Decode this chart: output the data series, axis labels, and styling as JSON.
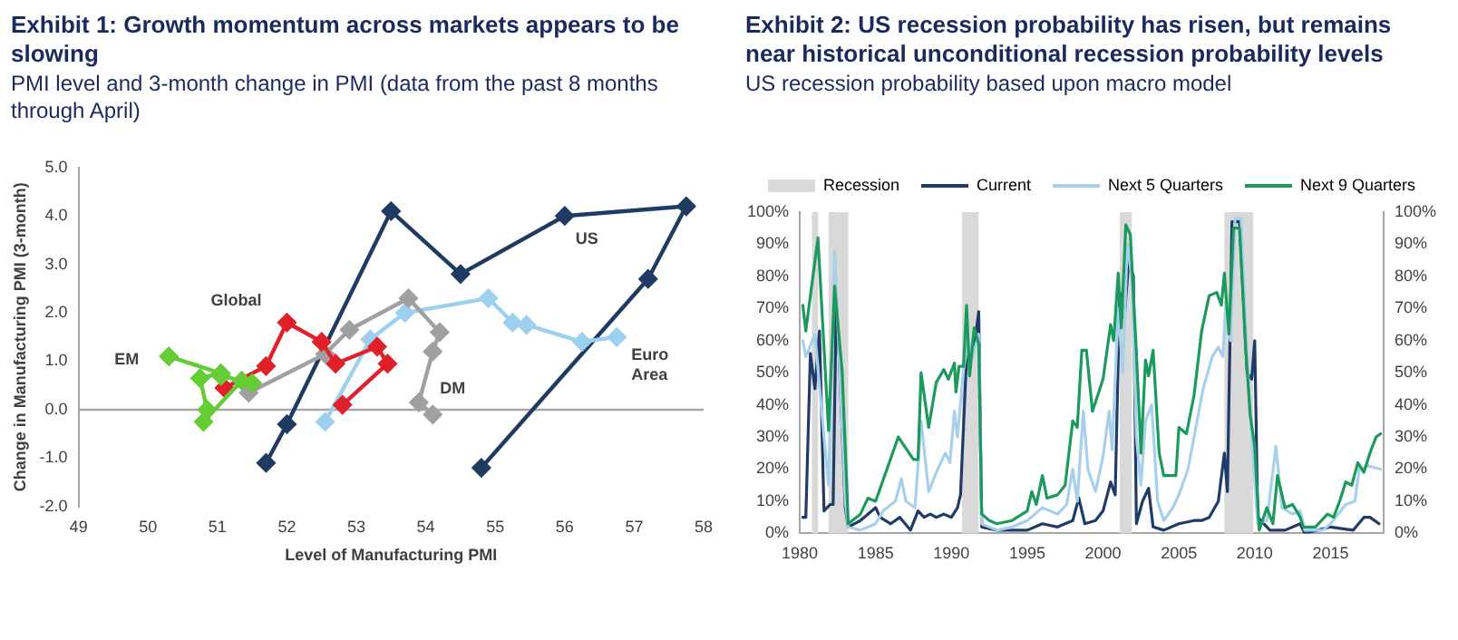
{
  "chart_data": [
    {
      "type": "line",
      "title": "Exhibit 1: Growth momentum across markets appears to be slowing",
      "subtitle": "PMI level and 3-month change in PMI (data from the past 8 months through April)",
      "xlabel": "Level of Manufacturing PMI",
      "ylabel": "Change in Manufacturing PMI (3-month)",
      "marker": "diamond",
      "legend": false,
      "xlim": [
        49,
        58
      ],
      "xticks": [
        49,
        50,
        51,
        52,
        53,
        54,
        55,
        56,
        57,
        58
      ],
      "ylim": [
        -2,
        5
      ],
      "yticks": [
        {
          "value": -2,
          "label": "-2.0"
        },
        {
          "value": -1,
          "label": "-1.0"
        },
        {
          "value": 0,
          "label": "0.0"
        },
        {
          "value": 1,
          "label": "1.0"
        },
        {
          "value": 2,
          "label": "2.0"
        },
        {
          "value": 3,
          "label": "3.0"
        },
        {
          "value": 4,
          "label": "4.0"
        },
        {
          "value": 5,
          "label": "5.0"
        }
      ],
      "ref_lines": [
        {
          "axis": "y",
          "value": 0,
          "color": "#a6a6a6"
        }
      ],
      "series": [
        {
          "name": "US",
          "color": "#1f3b63",
          "x": [
            51.7,
            52.0,
            53.5,
            54.5,
            56.0,
            57.75,
            57.2,
            54.8
          ],
          "values": [
            -1.1,
            -0.3,
            4.1,
            2.8,
            4.0,
            4.2,
            2.7,
            -1.2
          ]
        },
        {
          "name": "Euro Area",
          "color": "#9dd0ef",
          "x": [
            52.55,
            53.2,
            53.7,
            54.9,
            55.25,
            55.45,
            56.25,
            56.75
          ],
          "values": [
            -0.25,
            1.45,
            2.0,
            2.3,
            1.8,
            1.75,
            1.4,
            1.5
          ]
        },
        {
          "name": "DM",
          "color": "#a0a0a0",
          "x": [
            51.45,
            52.55,
            52.9,
            53.75,
            54.2,
            54.1,
            53.9,
            54.1
          ],
          "values": [
            0.35,
            1.15,
            1.65,
            2.3,
            1.6,
            1.2,
            0.15,
            -0.1
          ]
        },
        {
          "name": "Global",
          "color": "#e0202a",
          "x": [
            51.1,
            51.7,
            52.0,
            52.5,
            52.7,
            53.3,
            53.45,
            52.8
          ],
          "values": [
            0.45,
            0.9,
            1.8,
            1.4,
            0.95,
            1.3,
            0.95,
            0.1
          ]
        },
        {
          "name": "EM",
          "color": "#66cc33",
          "x": [
            50.3,
            51.05,
            50.75,
            50.85,
            50.8,
            51.35,
            51.5,
            51.05
          ],
          "values": [
            1.1,
            0.75,
            0.65,
            0.0,
            -0.25,
            0.6,
            0.55,
            0.7
          ]
        }
      ]
    },
    {
      "type": "line",
      "title": "Exhibit 2: US recession probability has risen, but remains near historical unconditional recession probability levels",
      "subtitle": "US recession probability based upon macro model",
      "legend": "top",
      "xlim": [
        1980,
        2018.5
      ],
      "xticks": [
        1980,
        1985,
        1990,
        1995,
        2000,
        2005,
        2010,
        2015
      ],
      "ylim": [
        0,
        100
      ],
      "yticks": [
        {
          "value": 0,
          "label": "0%"
        },
        {
          "value": 10,
          "label": "10%"
        },
        {
          "value": 20,
          "label": "20%"
        },
        {
          "value": 30,
          "label": "30%"
        },
        {
          "value": 40,
          "label": "40%"
        },
        {
          "value": 50,
          "label": "50%"
        },
        {
          "value": 60,
          "label": "60%"
        },
        {
          "value": 70,
          "label": "70%"
        },
        {
          "value": 80,
          "label": "80%"
        },
        {
          "value": 90,
          "label": "90%"
        },
        {
          "value": 100,
          "label": "100%"
        }
      ],
      "y2lim": [
        0,
        100
      ],
      "y2ticks": [
        {
          "value": 0,
          "label": "0%"
        },
        {
          "value": 10,
          "label": "10%"
        },
        {
          "value": 20,
          "label": "20%"
        },
        {
          "value": 30,
          "label": "30%"
        },
        {
          "value": 40,
          "label": "40%"
        },
        {
          "value": 50,
          "label": "50%"
        },
        {
          "value": 60,
          "label": "60%"
        },
        {
          "value": 70,
          "label": "70%"
        },
        {
          "value": 80,
          "label": "80%"
        },
        {
          "value": 90,
          "label": "90%"
        },
        {
          "value": 100,
          "label": "100%"
        }
      ],
      "bands": [
        {
          "axis": "x",
          "from": 1980.8,
          "to": 1981.2,
          "label": "Recession",
          "color": "#d9d9d9"
        },
        {
          "axis": "x",
          "from": 1981.9,
          "to": 1983.2,
          "color": "#d9d9d9"
        },
        {
          "axis": "x",
          "from": 1990.7,
          "to": 1991.8,
          "color": "#d9d9d9"
        },
        {
          "axis": "x",
          "from": 2001.1,
          "to": 2001.9,
          "color": "#d9d9d9"
        },
        {
          "axis": "x",
          "from": 2008.0,
          "to": 2009.9,
          "color": "#d9d9d9"
        }
      ],
      "series": [
        {
          "name": "Current",
          "color": "#1f3b68",
          "x": [
            1980.2,
            1980.4,
            1980.7,
            1981,
            1981.3,
            1981.6,
            1982,
            1982.2,
            1982.4,
            1982.6,
            1983,
            1983.2,
            1984,
            1985,
            1985.3,
            1986,
            1986.6,
            1987.3,
            1987.8,
            1988.2,
            1988.6,
            1989,
            1989.5,
            1990,
            1990.4,
            1990.6,
            1991,
            1991.5,
            1991.8,
            1992,
            1993,
            1995,
            1996,
            1997,
            1998,
            1998.4,
            1998.8,
            1999.5,
            2000,
            2000.5,
            2000.8,
            2001.1,
            2001.4,
            2001.7,
            2002,
            2002.2,
            2002.6,
            2003,
            2003.3,
            2004,
            2005,
            2006,
            2006.5,
            2007,
            2007.6,
            2008,
            2008.2,
            2008.5,
            2009,
            2009.5,
            2009.8,
            2010,
            2010.2,
            2011,
            2012,
            2013,
            2013.3,
            2015,
            2016.5,
            2017.2,
            2017.6,
            2018.2
          ],
          "values": [
            5,
            5,
            56,
            45,
            63,
            7,
            9,
            9,
            70,
            55,
            8,
            2,
            4,
            8,
            5,
            3,
            5,
            1,
            7,
            5,
            6,
            5,
            6,
            5,
            8,
            12,
            55,
            58,
            69,
            2,
            1,
            1,
            3,
            2,
            4,
            11,
            3,
            4,
            7,
            16,
            12,
            75,
            67,
            85,
            80,
            3,
            10,
            14,
            2,
            1,
            3,
            4,
            4,
            5,
            10,
            25,
            13,
            97,
            97,
            50,
            48,
            60,
            5,
            1,
            1,
            3,
            0,
            2,
            1,
            5,
            5,
            3
          ]
        },
        {
          "name": "Next 5 Quarters",
          "color": "#a7d0ea",
          "x": [
            1980.2,
            1980.4,
            1981,
            1981.6,
            1981.9,
            1982.3,
            1982.6,
            1983,
            1983.2,
            1984,
            1985,
            1985.5,
            1986.3,
            1986.7,
            1987,
            1987.6,
            1988,
            1988.5,
            1989,
            1989.6,
            1989.9,
            1990.2,
            1990.4,
            1990.8,
            1991.1,
            1991.4,
            1991.8,
            1992,
            1993,
            1994,
            1995,
            1995.5,
            1996,
            1997,
            1997.6,
            1998,
            1998.3,
            1998.7,
            1999,
            1999.5,
            2000,
            2000.4,
            2000.6,
            2001,
            2001.3,
            2001.6,
            2001.9,
            2002.2,
            2002.5,
            2002.8,
            2003.2,
            2003.6,
            2004,
            2004.6,
            2005,
            2005.6,
            2006,
            2006.6,
            2007.2,
            2007.6,
            2007.9,
            2008.1,
            2008.4,
            2008.7,
            2009.1,
            2009.5,
            2009.8,
            2010.2,
            2010.8,
            2011.4,
            2011.8,
            2012.5,
            2013,
            2013.3,
            2014.5,
            2015,
            2015.5,
            2016,
            2016.6,
            2016.9,
            2017.5,
            2018.3
          ],
          "values": [
            60,
            55,
            62,
            30,
            15,
            88,
            55,
            10,
            2,
            1,
            3,
            7,
            10,
            17,
            10,
            8,
            35,
            13,
            19,
            25,
            22,
            38,
            30,
            51,
            60,
            55,
            62,
            3,
            1,
            2,
            4,
            6,
            8,
            6,
            9,
            20,
            10,
            38,
            20,
            13,
            24,
            38,
            26,
            70,
            50,
            90,
            80,
            30,
            15,
            35,
            40,
            10,
            4,
            8,
            12,
            20,
            30,
            45,
            55,
            58,
            55,
            72,
            60,
            98,
            98,
            55,
            30,
            3,
            4,
            27,
            8,
            6,
            7,
            1,
            1,
            3,
            6,
            9,
            10,
            20,
            21,
            20
          ]
        },
        {
          "name": "Next 9 Quarters",
          "color": "#1a9a5c",
          "x": [
            1980.2,
            1980.4,
            1981.2,
            1981.9,
            1982.3,
            1982.8,
            1983.2,
            1984,
            1984.5,
            1985,
            1986.5,
            1987.5,
            1987.8,
            1988,
            1988.5,
            1989,
            1989.5,
            1989.8,
            1990.2,
            1990.3,
            1990.5,
            1990.8,
            1991,
            1991.2,
            1991.5,
            1991.8,
            1992,
            1992.5,
            1993,
            1994,
            1995,
            1995.3,
            1995.6,
            1996,
            1996.3,
            1997,
            1997.5,
            1998,
            1998.3,
            1998.6,
            1998.9,
            1999.3,
            2000,
            2000.5,
            2000.7,
            2001,
            2001.2,
            2001.5,
            2001.8,
            2002.2,
            2002.5,
            2002.8,
            2003,
            2003.3,
            2003.7,
            2004,
            2004.8,
            2005,
            2005.5,
            2006,
            2006.5,
            2007,
            2007.5,
            2007.8,
            2008,
            2008.3,
            2008.6,
            2009,
            2009.4,
            2009.7,
            2010,
            2010.3,
            2010.8,
            2011.2,
            2011.5,
            2012,
            2012.5,
            2013,
            2013.2,
            2014,
            2014.8,
            2015.2,
            2015.6,
            2016,
            2016.4,
            2016.8,
            2017.2,
            2017.6,
            2018,
            2018.3
          ],
          "values": [
            71,
            63,
            92,
            32,
            77,
            50,
            3,
            6,
            11,
            10,
            30,
            23,
            23,
            50,
            33,
            47,
            51,
            48,
            53,
            44,
            52,
            52,
            71,
            49,
            64,
            59,
            6,
            4,
            3,
            4,
            7,
            13,
            9,
            18,
            11,
            12,
            15,
            35,
            33,
            57,
            57,
            38,
            48,
            65,
            60,
            81,
            64,
            96,
            93,
            56,
            25,
            54,
            49,
            57,
            25,
            18,
            18,
            33,
            31,
            43,
            63,
            74,
            75,
            71,
            81,
            62,
            95,
            95,
            58,
            37,
            27,
            1,
            8,
            3,
            18,
            8,
            9,
            5,
            2,
            2,
            6,
            5,
            10,
            16,
            15,
            22,
            19,
            25,
            30,
            31
          ]
        }
      ]
    }
  ]
}
